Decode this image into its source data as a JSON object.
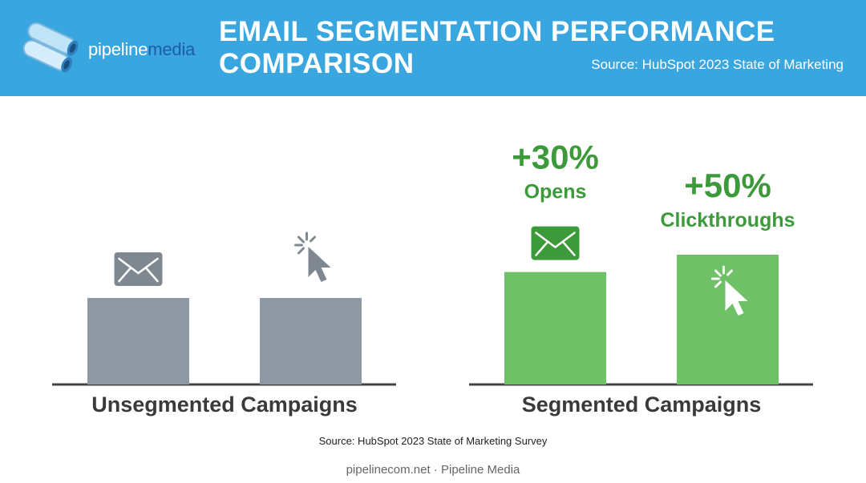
{
  "header": {
    "logo_part1": "pipeline",
    "logo_part2": "media",
    "title": "EMAIL SEGMENTATION PERFORMANCE COMPARISON",
    "source": "Source: HubSpot 2023 State of Marketing"
  },
  "footer": {
    "source": "Source: HubSpot 2023 State of Marketing Survey",
    "credit": "pipelinecom.net · Pipeline Media"
  },
  "colors": {
    "header_bg": "#3aa6e0",
    "unsegmented": "#8e98a3",
    "segmented": "#6fc168",
    "accent_text": "#3d9a3a"
  },
  "chart_data": {
    "type": "bar",
    "groups": [
      "Unsegmented Campaigns",
      "Segmented Campaigns"
    ],
    "categories": [
      "Opens",
      "Clickthroughs"
    ],
    "series": [
      {
        "values": [
          100,
          100
        ]
      },
      {
        "values": [
          130,
          150
        ]
      }
    ],
    "annotations": [
      {
        "group": "Segmented Campaigns",
        "category": "Opens",
        "value_label": "+30%",
        "label": "Opens"
      },
      {
        "group": "Segmented Campaigns",
        "category": "Clickthroughs",
        "value_label": "+50%",
        "label": "Clickthroughs"
      }
    ],
    "icons": [
      "envelope-icon",
      "cursor-click-icon"
    ],
    "ylim": [
      0,
      160
    ]
  }
}
